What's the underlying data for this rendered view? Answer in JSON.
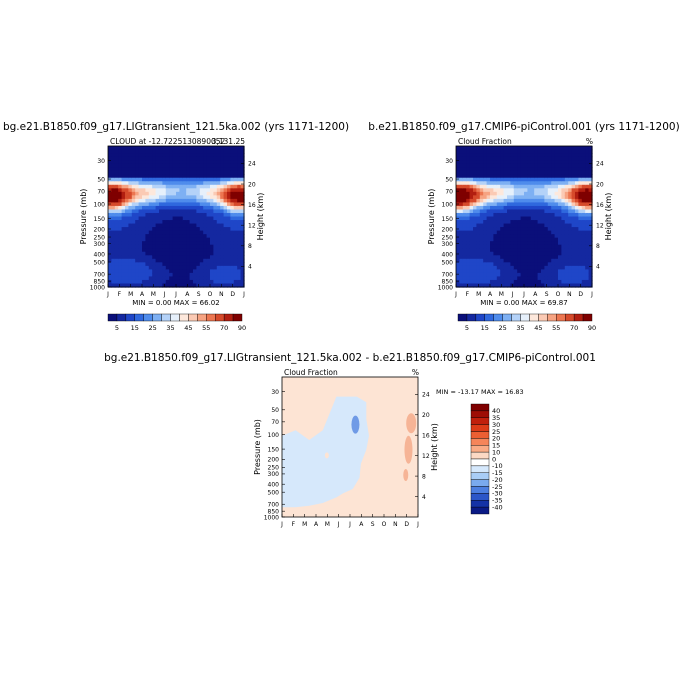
{
  "chart_data": [
    {
      "type": "heatmap",
      "title": "bg.e21.B1850.f09_g17.LIGtransient_121.5ka.002 (yrs 1171-1200)",
      "subtitle_left": "CLOUD at -12.7225130890052",
      "subtitle_right": "3,131.25",
      "ylabel_left": "Pressure (mb)",
      "ylabel_right": "Height (km)",
      "x_ticks": [
        "J",
        "F",
        "M",
        "A",
        "M",
        "J",
        "J",
        "A",
        "S",
        "O",
        "N",
        "D",
        "J"
      ],
      "pressure_ticks": [
        "30",
        "50",
        "70",
        "100",
        "150",
        "200",
        "250",
        "300",
        "400",
        "500",
        "700",
        "850",
        "1000"
      ],
      "height_ticks": [
        "24",
        "20",
        "16",
        "12",
        "8",
        "4"
      ],
      "min_max_text": "MIN =   0.00 MAX =  66.02",
      "colorbar_labels": [
        "5",
        "15",
        "25",
        "35",
        "45",
        "55",
        "70",
        "90"
      ]
    },
    {
      "type": "heatmap",
      "title": "b.e21.B1850.f09_g17.CMIP6-piControl.001 (yrs 1171-1200)",
      "subtitle_left": "Cloud Fraction",
      "subtitle_right": "%",
      "ylabel_left": "Pressure (mb)",
      "ylabel_right": "Height (km)",
      "x_ticks": [
        "J",
        "F",
        "M",
        "A",
        "M",
        "J",
        "J",
        "A",
        "S",
        "O",
        "N",
        "D",
        "J"
      ],
      "pressure_ticks": [
        "30",
        "50",
        "70",
        "100",
        "150",
        "200",
        "250",
        "300",
        "400",
        "500",
        "700",
        "850",
        "1000"
      ],
      "height_ticks": [
        "24",
        "20",
        "16",
        "12",
        "8",
        "4"
      ],
      "min_max_text": "MIN =   0.00 MAX =  69.87",
      "colorbar_labels": [
        "5",
        "15",
        "25",
        "35",
        "45",
        "55",
        "70",
        "90"
      ]
    },
    {
      "type": "heatmap",
      "title": "bg.e21.B1850.f09_g17.LIGtransient_121.5ka.002 - b.e21.B1850.f09_g17.CMIP6-piControl.001",
      "subtitle_left": "Cloud Fraction",
      "subtitle_right": "%",
      "ylabel_left": "Pressure (mb)",
      "ylabel_right": "Height (km)",
      "x_ticks": [
        "J",
        "F",
        "M",
        "A",
        "M",
        "J",
        "J",
        "A",
        "S",
        "O",
        "N",
        "D",
        "J"
      ],
      "pressure_ticks": [
        "30",
        "50",
        "70",
        "100",
        "150",
        "200",
        "250",
        "300",
        "400",
        "500",
        "700",
        "850",
        "1000"
      ],
      "height_ticks": [
        "24",
        "20",
        "16",
        "12",
        "8",
        "4"
      ],
      "min_max_text": "MIN = -13.17 MAX =  16.83",
      "colorbar_labels": [
        "40",
        "35",
        "30",
        "25",
        "20",
        "15",
        "10",
        "0",
        "-10",
        "-15",
        "-20",
        "-25",
        "-30",
        "-35",
        "-40"
      ]
    }
  ],
  "colors": {
    "abs_scale": [
      "#0a0f7a",
      "#1428a0",
      "#1f46c8",
      "#2f68de",
      "#4f8cec",
      "#7eb0f3",
      "#b4d2f8",
      "#e6f0fb",
      "#fde8dc",
      "#fbcab4",
      "#f6a382",
      "#ec7651",
      "#d64a2b",
      "#b21e10",
      "#7f0000"
    ],
    "diff_scale": [
      "#7f0000",
      "#9e0d05",
      "#c01f0c",
      "#dc3b18",
      "#ec5f33",
      "#f5855a",
      "#f9ab86",
      "#fcd8c4",
      "#ffffff",
      "#d5e8fc",
      "#a9cdf6",
      "#7aaaee",
      "#4d7fe0",
      "#2c56c8",
      "#1432a6",
      "#0a1a85"
    ],
    "diff_positive": "#fde4d4",
    "diff_negative": "#d6e8fb",
    "diff_strong_pos": "#f6b496",
    "diff_strong_neg": "#6f9ae6"
  }
}
